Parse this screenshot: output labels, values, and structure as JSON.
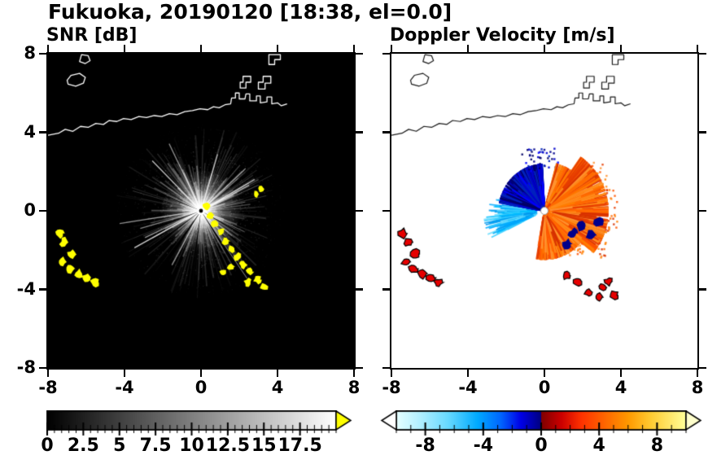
{
  "title": "Fukuoka, 20190120 [18:38, el=0.0]",
  "panels": {
    "snr": {
      "title": "SNR [dB]"
    },
    "doppler": {
      "title": "Doppler Velocity [m/s]"
    }
  },
  "axes": {
    "xlim": [
      -8,
      8
    ],
    "ylim": [
      -8,
      8
    ],
    "xtick_labels": [
      "-8",
      "-4",
      "0",
      "4",
      "8"
    ],
    "ytick_labels": [
      "-8",
      "-4",
      "0",
      "4",
      "8"
    ]
  },
  "chart_data": [
    {
      "type": "heatmap",
      "panel": "snr",
      "title": "SNR [dB]",
      "xlim": [
        -8,
        8
      ],
      "ylim": [
        -8,
        8
      ],
      "xticks": [
        -8,
        -4,
        0,
        4,
        8
      ],
      "yticks": [
        -8,
        -4,
        0,
        4,
        8
      ],
      "background": "#000000",
      "units": "dB",
      "colorbar": {
        "range": [
          0,
          20
        ],
        "labels": [
          "0",
          "2.5",
          "5",
          "7.5",
          "10",
          "12.5",
          "15",
          "17.5"
        ],
        "label_values": [
          0,
          2.5,
          5,
          7.5,
          10,
          12.5,
          15,
          17.5
        ],
        "minor_step": 0.5,
        "gradient": [
          [
            "0",
            "#000000"
          ],
          [
            "1",
            "#ffffff"
          ]
        ],
        "over_arrow_color": "#ffff00"
      },
      "radar": {
        "center": [
          0,
          0
        ],
        "echo_description": "radial white SNR streaks fading with range",
        "max_echo_radius": 4.5,
        "blocked_beam_angles_deg": [
          158,
          200,
          216,
          235,
          262,
          303,
          331
        ],
        "high_color": "#ffff00",
        "high_snr_yellow_band": [
          [
            0.3,
            0.25
          ],
          [
            0.5,
            -0.25
          ],
          [
            0.75,
            -0.65
          ],
          [
            1.05,
            -1.05
          ],
          [
            1.3,
            -1.55
          ],
          [
            1.6,
            -1.95
          ],
          [
            1.9,
            -2.35
          ],
          [
            2.2,
            -2.75
          ],
          [
            2.55,
            -3.1
          ],
          [
            2.95,
            -3.5
          ],
          [
            3.3,
            -3.85
          ],
          [
            2.45,
            -3.65
          ],
          [
            1.55,
            -2.85
          ],
          [
            1.15,
            -3.15
          ]
        ],
        "west_clutter_yellow": [
          [
            -7.4,
            -1.15
          ],
          [
            -7.15,
            -1.6
          ],
          [
            -7.25,
            -2.6
          ],
          [
            -6.85,
            -2.95
          ],
          [
            -6.4,
            -3.2
          ],
          [
            -5.95,
            -3.4
          ],
          [
            -5.55,
            -3.65
          ],
          [
            -6.75,
            -2.2
          ]
        ],
        "isolated_yellow": [
          [
            2.9,
            0.85
          ],
          [
            3.15,
            1.1
          ]
        ]
      }
    },
    {
      "type": "heatmap",
      "panel": "doppler",
      "title": "Doppler Velocity [m/s]",
      "xlim": [
        -8,
        8
      ],
      "ylim": [
        -8,
        8
      ],
      "xticks": [
        -8,
        -4,
        0,
        4,
        8
      ],
      "yticks": [
        -8,
        -4,
        0,
        4,
        8
      ],
      "background": "#ffffff",
      "units": "m/s",
      "colorbar": {
        "range": [
          -10,
          10
        ],
        "labels": [
          "-8",
          "-4",
          "0",
          "4",
          "8"
        ],
        "label_values": [
          -8,
          -4,
          0,
          4,
          8
        ],
        "minor_step": 1,
        "gradient": [
          [
            "0",
            "#e6ffff"
          ],
          [
            "0.08",
            "#b3f0ff"
          ],
          [
            "0.18",
            "#66d9ff"
          ],
          [
            "0.28",
            "#00aaff"
          ],
          [
            "0.36",
            "#0066ff"
          ],
          [
            "0.43",
            "#0000e6"
          ],
          [
            "0.499",
            "#000080"
          ],
          [
            "0.501",
            "#800000"
          ],
          [
            "0.57",
            "#cc0000"
          ],
          [
            "0.64",
            "#ff3300"
          ],
          [
            "0.72",
            "#ff6600"
          ],
          [
            "0.8",
            "#ff9900"
          ],
          [
            "0.88",
            "#ffcc33"
          ],
          [
            "1",
            "#ffff99"
          ]
        ],
        "under_arrow_color": "#ffffff",
        "over_arrow_color": "#ffffcc"
      },
      "radar": {
        "center": [
          0,
          0
        ],
        "toward_sector_deg": [
          93,
          170
        ],
        "toward_max_radius": 2.4,
        "toward_colors": [
          "#00008b",
          "#0000cd",
          "#0000ff",
          "#000066",
          "#0022bb"
        ],
        "toward_streaks_deg": [
          166,
          206
        ],
        "toward_streak_colors": [
          "#00bfff",
          "#33ccff",
          "#0099ee",
          "#66ddff",
          "#00aaff"
        ],
        "away_sector_deg": [
          -100,
          75
        ],
        "away_max_radius": 3.35,
        "away_colors": [
          "#e63c00",
          "#ff5500",
          "#ff6a00",
          "#ff7f00",
          "#ff9433",
          "#d63000",
          "#ff8c1a"
        ],
        "embedded_negative_patches": [
          [
            1.5,
            -1.15
          ],
          [
            1.95,
            -0.8
          ],
          [
            2.45,
            -1.25
          ],
          [
            1.2,
            -1.7
          ],
          [
            2.85,
            -0.55
          ]
        ],
        "clutter_color": "#e60000",
        "west_clutter_red": [
          [
            -7.4,
            -1.15
          ],
          [
            -7.15,
            -1.6
          ],
          [
            -7.25,
            -2.6
          ],
          [
            -6.85,
            -2.95
          ],
          [
            -6.4,
            -3.2
          ],
          [
            -5.95,
            -3.4
          ],
          [
            -5.55,
            -3.65
          ],
          [
            -6.75,
            -2.2
          ]
        ],
        "southeast_clutter_red": [
          [
            1.15,
            -3.3
          ],
          [
            1.75,
            -3.6
          ],
          [
            2.3,
            -4.15
          ],
          [
            2.85,
            -4.4
          ],
          [
            3.35,
            -3.6
          ],
          [
            3.05,
            -3.9
          ],
          [
            3.65,
            -4.3
          ]
        ]
      }
    }
  ],
  "map": {
    "coast_main": [
      [
        -8,
        3.85
      ],
      [
        -7.45,
        3.95
      ],
      [
        -7.1,
        4.15
      ],
      [
        -6.7,
        4.05
      ],
      [
        -6.3,
        4.3
      ],
      [
        -5.9,
        4.25
      ],
      [
        -5.5,
        4.45
      ],
      [
        -5.1,
        4.4
      ],
      [
        -4.8,
        4.6
      ],
      [
        -4.4,
        4.55
      ],
      [
        -4.05,
        4.7
      ],
      [
        -3.65,
        4.65
      ],
      [
        -3.25,
        4.8
      ],
      [
        -2.85,
        4.75
      ],
      [
        -2.45,
        4.85
      ],
      [
        -2.05,
        4.8
      ],
      [
        -1.65,
        4.95
      ],
      [
        -1.25,
        4.9
      ],
      [
        -0.85,
        5.05
      ],
      [
        -0.45,
        5.1
      ],
      [
        -0.05,
        5.2
      ],
      [
        0.35,
        5.15
      ],
      [
        0.65,
        5.3
      ],
      [
        0.95,
        5.25
      ],
      [
        1.25,
        5.4
      ],
      [
        1.55,
        5.45
      ],
      [
        1.6,
        5.75
      ],
      [
        1.8,
        5.75
      ],
      [
        1.8,
        6.0
      ],
      [
        2.0,
        6.0
      ],
      [
        2.0,
        5.7
      ],
      [
        2.3,
        5.7
      ],
      [
        2.35,
        5.95
      ],
      [
        2.55,
        5.95
      ],
      [
        2.55,
        5.6
      ],
      [
        2.9,
        5.6
      ],
      [
        2.9,
        5.85
      ],
      [
        3.1,
        5.85
      ],
      [
        3.1,
        5.5
      ],
      [
        3.45,
        5.55
      ],
      [
        3.45,
        5.8
      ],
      [
        3.7,
        5.8
      ],
      [
        3.7,
        5.45
      ],
      [
        4.0,
        5.5
      ],
      [
        4.2,
        5.35
      ],
      [
        4.5,
        5.45
      ]
    ],
    "islands": [
      [
        [
          -6.95,
          6.45
        ],
        [
          -6.55,
          6.35
        ],
        [
          -6.15,
          6.5
        ],
        [
          -6.05,
          6.8
        ],
        [
          -6.35,
          7.0
        ],
        [
          -6.8,
          6.9
        ],
        [
          -7.0,
          6.65
        ]
      ],
      [
        [
          -6.35,
          7.6
        ],
        [
          -6.05,
          7.5
        ],
        [
          -5.8,
          7.65
        ],
        [
          -5.9,
          7.9
        ],
        [
          -6.25,
          7.95
        ]
      ]
    ],
    "harbor": [
      [
        [
          2.05,
          6.25
        ],
        [
          2.35,
          6.25
        ],
        [
          2.35,
          6.55
        ],
        [
          2.6,
          6.55
        ],
        [
          2.6,
          6.85
        ],
        [
          2.2,
          6.85
        ],
        [
          2.2,
          6.55
        ],
        [
          2.05,
          6.55
        ]
      ],
      [
        [
          3.0,
          6.2
        ],
        [
          3.35,
          6.2
        ],
        [
          3.35,
          6.5
        ],
        [
          3.65,
          6.5
        ],
        [
          3.65,
          6.85
        ],
        [
          3.25,
          6.85
        ],
        [
          3.25,
          6.55
        ],
        [
          3.0,
          6.55
        ]
      ],
      [
        [
          3.55,
          7.45
        ],
        [
          3.85,
          7.45
        ],
        [
          3.85,
          7.7
        ],
        [
          4.15,
          7.7
        ],
        [
          4.15,
          7.95
        ],
        [
          3.55,
          7.95
        ]
      ]
    ]
  }
}
